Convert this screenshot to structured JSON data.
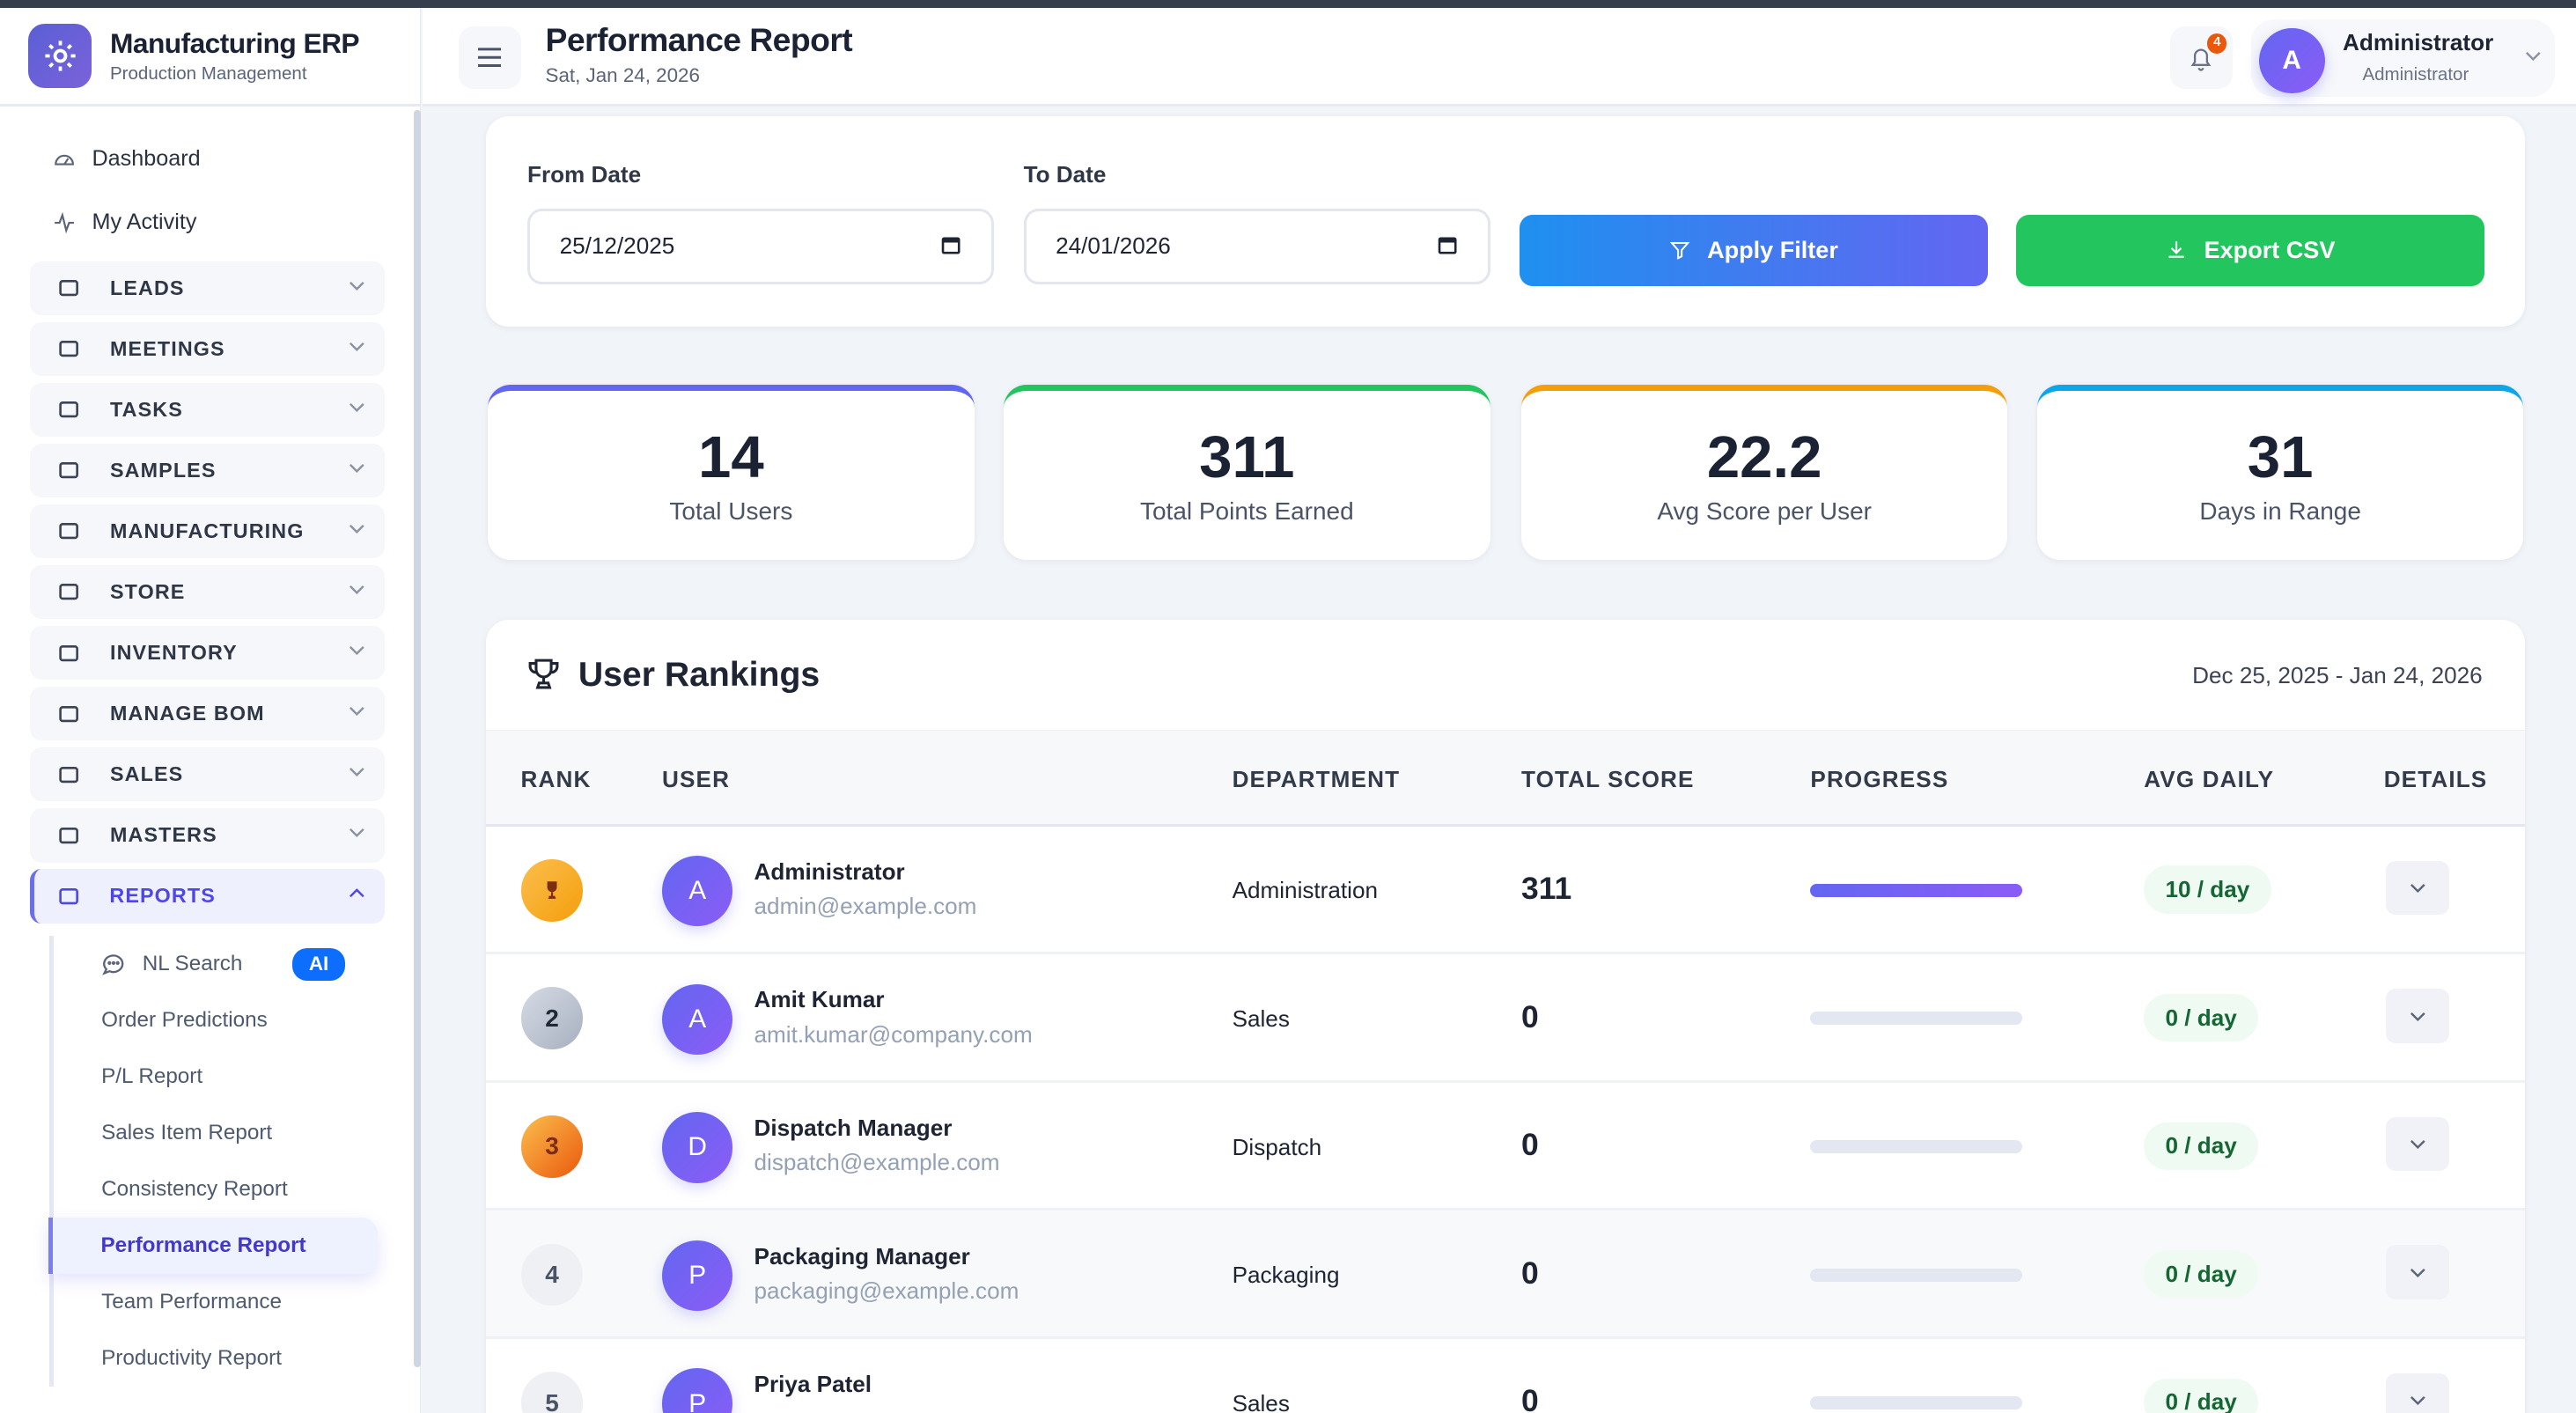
{
  "app": {
    "title": "Manufacturing ERP",
    "subtitle": "Production Management"
  },
  "header": {
    "title": "Performance Report",
    "date": "Sat, Jan 24, 2026",
    "notifications": "4",
    "user_name": "Administrator",
    "user_role": "Administrator",
    "user_initial": "A"
  },
  "sidebar": {
    "top": [
      {
        "label": "Dashboard",
        "icon": "gauge-icon"
      },
      {
        "label": "My Activity",
        "icon": "activity-icon"
      }
    ],
    "groups": [
      "LEADS",
      "MEETINGS",
      "TASKS",
      "SAMPLES",
      "MANUFACTURING",
      "STORE",
      "INVENTORY",
      "MANAGE BOM",
      "SALES",
      "MASTERS",
      "REPORTS"
    ],
    "reports_sub": [
      "NL Search",
      "Order Predictions",
      "P/L Report",
      "Sales Item Report",
      "Consistency Report",
      "Performance Report",
      "Team Performance",
      "Productivity Report"
    ],
    "ai_badge": "AI",
    "active": "Performance Report"
  },
  "filter": {
    "from_label": "From Date",
    "from_value": "25/12/2025",
    "to_label": "To Date",
    "to_value": "24/01/2026",
    "apply": "Apply Filter",
    "export": "Export CSV"
  },
  "stats": [
    {
      "value": "14",
      "label": "Total Users",
      "color": "#6366f1"
    },
    {
      "value": "311",
      "label": "Total Points Earned",
      "color": "#22c55e"
    },
    {
      "value": "22.2",
      "label": "Avg Score per User",
      "color": "#f59e0b"
    },
    {
      "value": "31",
      "label": "Days in Range",
      "color": "#0ea5e9"
    }
  ],
  "rankings": {
    "title": "User Rankings",
    "range": "Dec 25, 2025 - Jan 24, 2026",
    "columns": [
      "RANK",
      "USER",
      "DEPARTMENT",
      "TOTAL SCORE",
      "PROGRESS",
      "AVG DAILY",
      "DETAILS"
    ],
    "rows": [
      {
        "rank": "1",
        "initial": "A",
        "name": "Administrator",
        "email": "admin@example.com",
        "dept": "Administration",
        "score": "311",
        "progress": 100,
        "avg": "10 / day"
      },
      {
        "rank": "2",
        "initial": "A",
        "name": "Amit Kumar",
        "email": "amit.kumar@company.com",
        "dept": "Sales",
        "score": "0",
        "progress": 0,
        "avg": "0 / day"
      },
      {
        "rank": "3",
        "initial": "D",
        "name": "Dispatch Manager",
        "email": "dispatch@example.com",
        "dept": "Dispatch",
        "score": "0",
        "progress": 0,
        "avg": "0 / day"
      },
      {
        "rank": "4",
        "initial": "P",
        "name": "Packaging Manager",
        "email": "packaging@example.com",
        "dept": "Packaging",
        "score": "0",
        "progress": 0,
        "avg": "0 / day"
      },
      {
        "rank": "5",
        "initial": "P",
        "name": "Priya Patel",
        "email": "",
        "dept": "Sales",
        "score": "0",
        "progress": 0,
        "avg": "0 / day"
      }
    ]
  }
}
